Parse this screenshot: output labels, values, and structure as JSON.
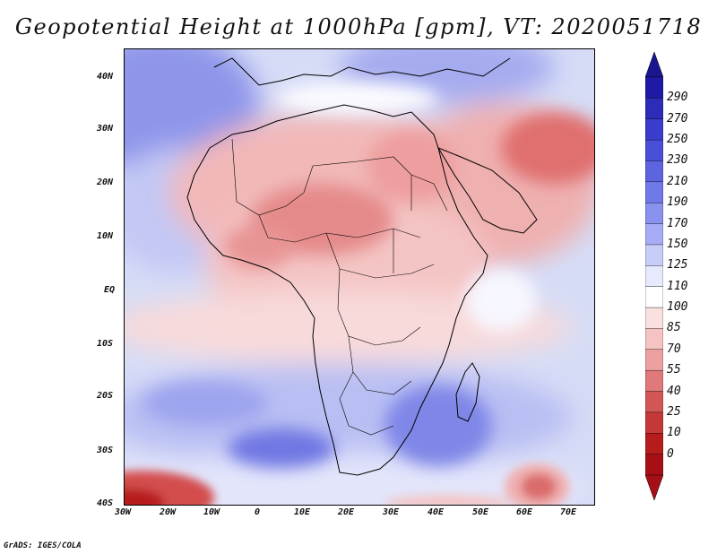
{
  "title": "Geopotential Height at 1000hPa [gpm], VT: 2020051718",
  "footer": "GrADS: IGES/COLA",
  "y_axis_labels": [
    "40N",
    "30N",
    "20N",
    "10N",
    "EQ",
    "10S",
    "20S",
    "30S",
    "40S"
  ],
  "x_axis_labels": [
    "30W",
    "20W",
    "10W",
    "0",
    "10E",
    "20E",
    "30E",
    "40E",
    "50E",
    "60E",
    "70E"
  ],
  "colorbar": {
    "levels": [
      "290",
      "270",
      "250",
      "230",
      "210",
      "190",
      "170",
      "150",
      "125",
      "110",
      "100",
      "85",
      "70",
      "55",
      "40",
      "25",
      "10",
      "0"
    ],
    "colors": [
      "#1f1aa3",
      "#2c2cb8",
      "#3a3ccc",
      "#4a4fd8",
      "#5c64e0",
      "#7079e8",
      "#8a92ef",
      "#a7adf5",
      "#c8cdf8",
      "#e7e9fc",
      "#ffffff",
      "#fbe0e0",
      "#f6c3c3",
      "#eda0a0",
      "#e07a7a",
      "#d35656",
      "#c53838",
      "#b71c1c",
      "#a50f15"
    ],
    "top_color": "#1a168f",
    "bottom_color": "#a50f15"
  },
  "map": {
    "ocean_color": "#c9d2f3",
    "high_heat_color": "#e58a8a",
    "low_blue_color": "#6e74e3"
  }
}
